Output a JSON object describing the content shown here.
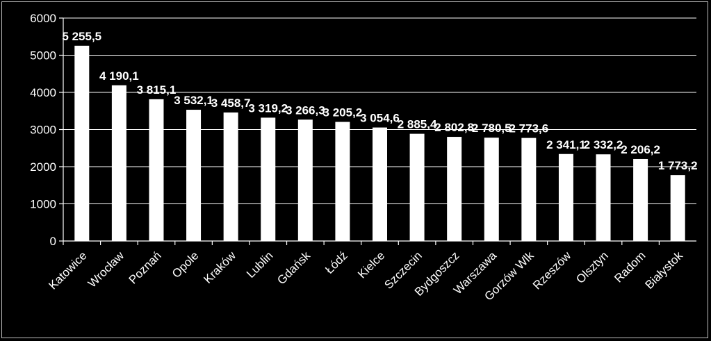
{
  "chart_data": {
    "type": "bar",
    "title": "",
    "xlabel": "",
    "ylabel": "",
    "ylim": [
      0,
      6000
    ],
    "yticks": [
      0,
      1000,
      2000,
      3000,
      4000,
      5000,
      6000
    ],
    "grid": true,
    "legend": "none",
    "colors": {
      "background": "#000000",
      "bar": "#ffffff",
      "text": "#ffffff",
      "grid": "#ffffff"
    },
    "categories": [
      "Katowice",
      "Wrocław",
      "Poznań",
      "Opole",
      "Kraków",
      "Lublin",
      "Gdańsk",
      "Łódź",
      "Kielce",
      "Szczecin",
      "Bydgoszcz",
      "Warszawa",
      "Gorzów Wlk",
      "Rzeszów",
      "Olsztyn",
      "Radom",
      "Białystok"
    ],
    "values": [
      5255.5,
      4190.1,
      3815.1,
      3532.1,
      3458.7,
      3319.2,
      3266.3,
      3205.2,
      3054.6,
      2885.4,
      2802.8,
      2780.5,
      2773.6,
      2341.1,
      2332.2,
      2206.2,
      1773.2
    ],
    "data_labels": [
      "5 255,5",
      "4 190,1",
      "3 815,1",
      "3 532,1",
      "3 458,7",
      "3 319,2",
      "3 266,3",
      "3 205,2",
      "3 054,6",
      "2 885,4",
      "2 802,8",
      "2 780,5",
      "2 773,6",
      "2 341,1",
      "2 332,2",
      "2 206,2",
      "1 773,2"
    ]
  }
}
